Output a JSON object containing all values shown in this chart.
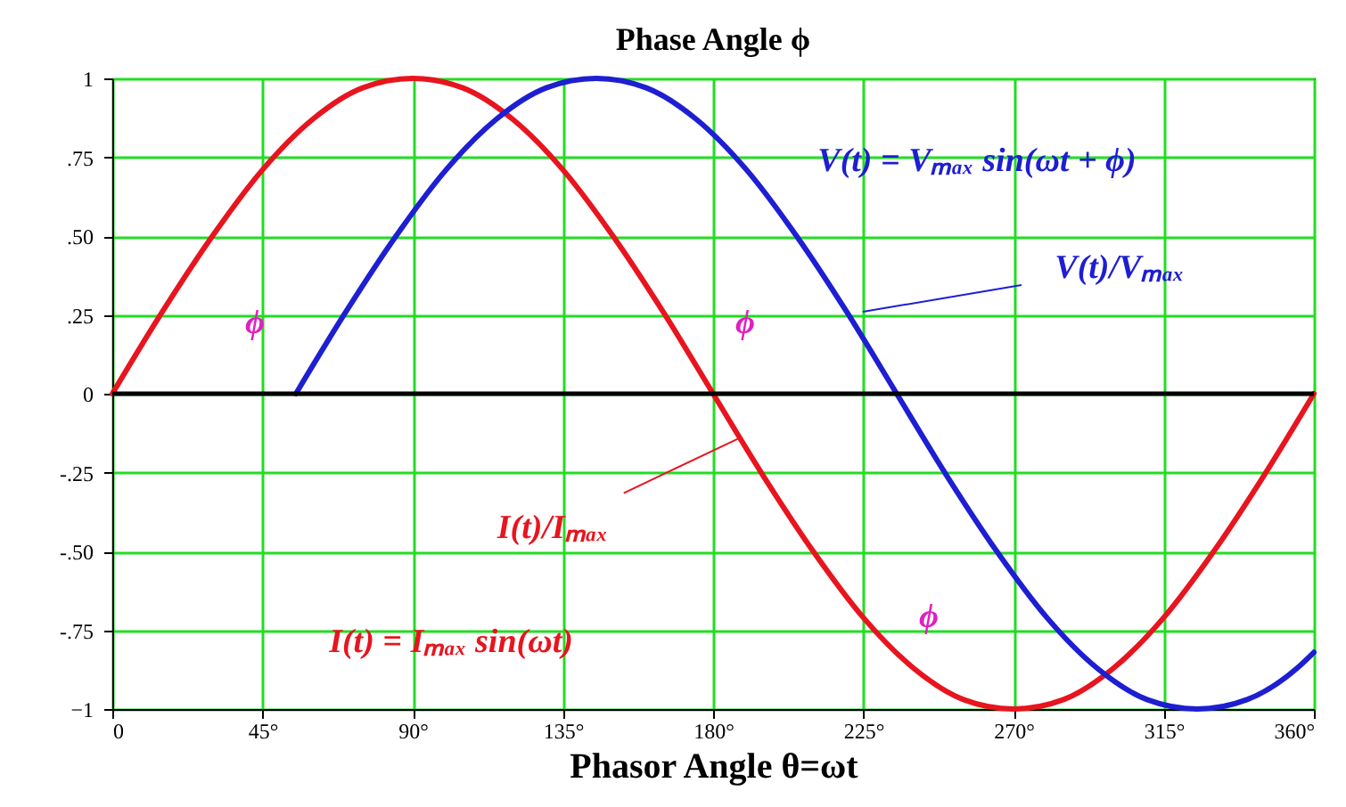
{
  "chart_data": {
    "type": "line",
    "title": "Phase Angle ϕ",
    "xlabel": "Phasor Angle θ=ωt",
    "series": [
      {
        "color": "#e8141e",
        "x": [
          0,
          15,
          30,
          45,
          60,
          75,
          90,
          105,
          120,
          135,
          150,
          165,
          180,
          195,
          210,
          225,
          240,
          255,
          270,
          285,
          300,
          315,
          330,
          345,
          360
        ],
        "values": [
          0,
          0.26,
          0.5,
          0.71,
          0.87,
          0.97,
          1,
          0.97,
          0.87,
          0.71,
          0.5,
          0.26,
          0,
          -0.26,
          -0.5,
          -0.71,
          -0.87,
          -0.97,
          -1,
          -0.97,
          -0.87,
          -0.71,
          -0.5,
          -0.26,
          0
        ]
      },
      {
        "color": "#1e1ed2",
        "x": [
          55,
          70,
          85,
          100,
          115,
          130,
          145,
          160,
          175,
          190,
          205,
          220,
          235,
          250,
          265,
          280,
          295,
          310,
          325,
          340,
          355,
          360
        ],
        "values": [
          0,
          0.26,
          0.5,
          0.71,
          0.87,
          0.97,
          1,
          0.97,
          0.87,
          0.71,
          0.5,
          0.26,
          0,
          -0.26,
          -0.5,
          -0.71,
          -0.87,
          -0.97,
          -1,
          -0.97,
          -0.87,
          -0.82
        ]
      }
    ],
    "xlim": [
      0,
      360
    ],
    "xticks": [
      0,
      {
        "value": 45,
        "label": "45°"
      },
      {
        "value": 90,
        "label": "90°"
      },
      {
        "value": 135,
        "label": "135°"
      },
      {
        "value": 180,
        "label": "180°"
      },
      {
        "value": 225,
        "label": "225°"
      },
      {
        "value": 270,
        "label": "270°"
      },
      {
        "value": 315,
        "label": "315°"
      },
      {
        "value": 360,
        "label": "360°"
      }
    ],
    "ylim": [
      -1,
      1
    ],
    "yticks": [
      {
        "value": -1,
        "label": "−1"
      },
      {
        "value": -0.75,
        "label": "-.75"
      },
      {
        "value": -0.5,
        "label": "-.50"
      },
      {
        "value": -0.25,
        "label": "-.25"
      },
      0,
      {
        "value": 0.25,
        "label": ".25"
      },
      {
        "value": 0.5,
        "label": ".50"
      },
      {
        "value": 0.75,
        "label": ".75"
      },
      1
    ],
    "grid": true,
    "ref_lines": [
      {
        "axis": "y",
        "value": 0,
        "color": "#000000"
      }
    ],
    "annotations": [
      "ϕ",
      "ϕ",
      "ϕ",
      "V(t)/Vₘₐₓ",
      {
        "text": "I(t)/Iₘₐₓ",
        "x": 188,
        "y": -0.14
      },
      "V(t) = Vₘₐₓ sin(ωt + ϕ)",
      "I(t) = Iₘₐₓ sin(ωt)"
    ]
  }
}
